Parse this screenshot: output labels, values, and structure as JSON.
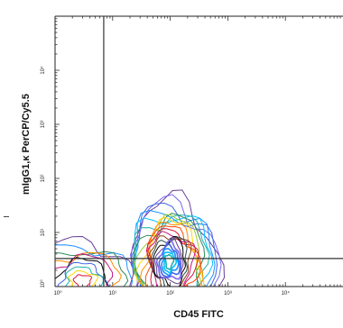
{
  "chart_data": {
    "type": "contour",
    "title": "",
    "xlabel": "CD45 FITC",
    "ylabel": "mIgG1,κ PerCP/Cy5.5",
    "xscale": "log",
    "yscale": "log",
    "xlim": [
      0,
      100000
    ],
    "ylim": [
      0,
      100000
    ],
    "x_ticks": [
      "10⁰",
      "10¹",
      "10²",
      "10³",
      "10⁴"
    ],
    "y_ticks": [
      "10⁰",
      "10¹",
      "10²",
      "10³",
      "10⁴"
    ],
    "gates": {
      "vertical_x": 7,
      "horizontal_y": 3.3
    },
    "populations": [
      {
        "name": "",
        "x_center": 3,
        "y_center": 1.6,
        "levels": 10
      },
      {
        "name": "",
        "x_center": 95,
        "y_center": 2.5,
        "levels": 22
      }
    ],
    "contour_colors": [
      "#6a3d9a",
      "#7b68ee",
      "#4169e1",
      "#1e90ff",
      "#00bfff",
      "#20b2aa",
      "#2e8b57",
      "#9acd32",
      "#ffd700",
      "#ff8c00",
      "#ff4500",
      "#dc143c",
      "#c71585",
      "#8b4513",
      "#2f4f4f",
      "#000000"
    ]
  }
}
